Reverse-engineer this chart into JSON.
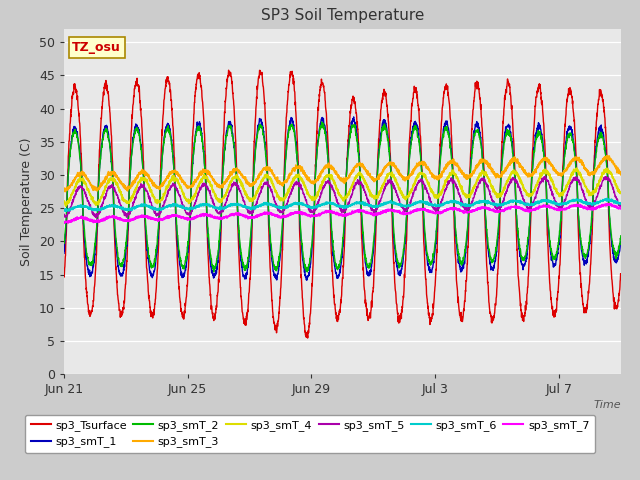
{
  "title": "SP3 Soil Temperature",
  "ylabel": "Soil Temperature (C)",
  "xlabel": "Time",
  "tz_label": "TZ_osu",
  "ylim": [
    0,
    52
  ],
  "yticks": [
    0,
    5,
    10,
    15,
    20,
    25,
    30,
    35,
    40,
    45,
    50
  ],
  "x_tick_labels": [
    "Jun 21",
    "Jun 25",
    "Jun 29",
    "Jul 3",
    "Jul 7"
  ],
  "x_tick_days": [
    0,
    4,
    8,
    12,
    16
  ],
  "series_colors": {
    "sp3_Tsurface": "#dd0000",
    "sp3_smT_1": "#0000bb",
    "sp3_smT_2": "#00bb00",
    "sp3_smT_3": "#ffaa00",
    "sp3_smT_4": "#dddd00",
    "sp3_smT_5": "#aa00aa",
    "sp3_smT_6": "#00cccc",
    "sp3_smT_7": "#ff00ff"
  },
  "background_color": "#cccccc",
  "plot_bg_color": "#e8e8e8",
  "n_days": 18,
  "samples_per_day": 144
}
